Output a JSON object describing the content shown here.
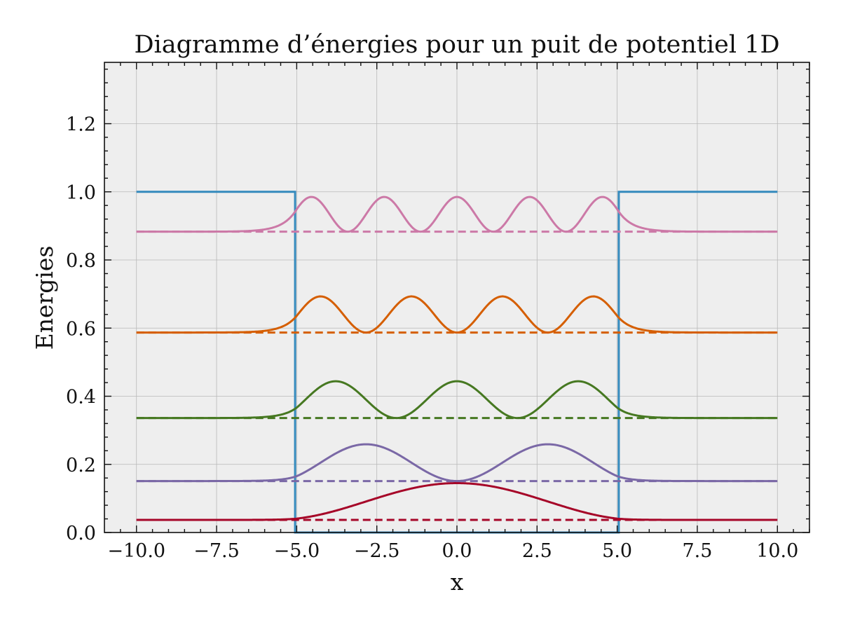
{
  "chart_data": {
    "type": "line",
    "title": "Diagramme d’énergies pour un puit de potentiel 1D",
    "xlabel": "x",
    "ylabel": "Energies",
    "xlim": [
      -11.0,
      11.0
    ],
    "ylim": [
      0.0,
      1.38
    ],
    "x_ticks": [
      -10.0,
      -7.5,
      -5.0,
      -2.5,
      0.0,
      2.5,
      5.0,
      7.5,
      10.0
    ],
    "x_tick_labels": [
      "−10.0",
      "−7.5",
      "−5.0",
      "−2.5",
      "0.0",
      "2.5",
      "5.0",
      "7.5",
      "10.0"
    ],
    "y_ticks": [
      0.0,
      0.2,
      0.4,
      0.6,
      0.8,
      1.0,
      1.2
    ],
    "y_tick_labels": [
      "0.0",
      "0.2",
      "0.4",
      "0.6",
      "0.8",
      "1.0",
      "1.2"
    ],
    "grid": true,
    "background": "#eeeeee",
    "potential": {
      "color": "#348abd",
      "points": [
        [
          -10,
          1.0
        ],
        [
          -5.05,
          1.0
        ],
        [
          -5.05,
          0.0
        ],
        [
          5.05,
          0.0
        ],
        [
          5.05,
          1.0
        ],
        [
          10,
          1.0
        ]
      ]
    },
    "well": {
      "half_width": 5.0,
      "x_start": -10,
      "x_end": 10
    },
    "levels": [
      {
        "n": 1,
        "energy": 0.037,
        "amplitude": 0.108,
        "color": "#a60628"
      },
      {
        "n": 2,
        "energy": 0.151,
        "amplitude": 0.108,
        "color": "#7a68a6"
      },
      {
        "n": 3,
        "energy": 0.336,
        "amplitude": 0.108,
        "color": "#467821"
      },
      {
        "n": 4,
        "energy": 0.587,
        "amplitude": 0.106,
        "color": "#d55e00"
      },
      {
        "n": 5,
        "energy": 0.883,
        "amplitude": 0.102,
        "color": "#cc79a7"
      }
    ]
  }
}
